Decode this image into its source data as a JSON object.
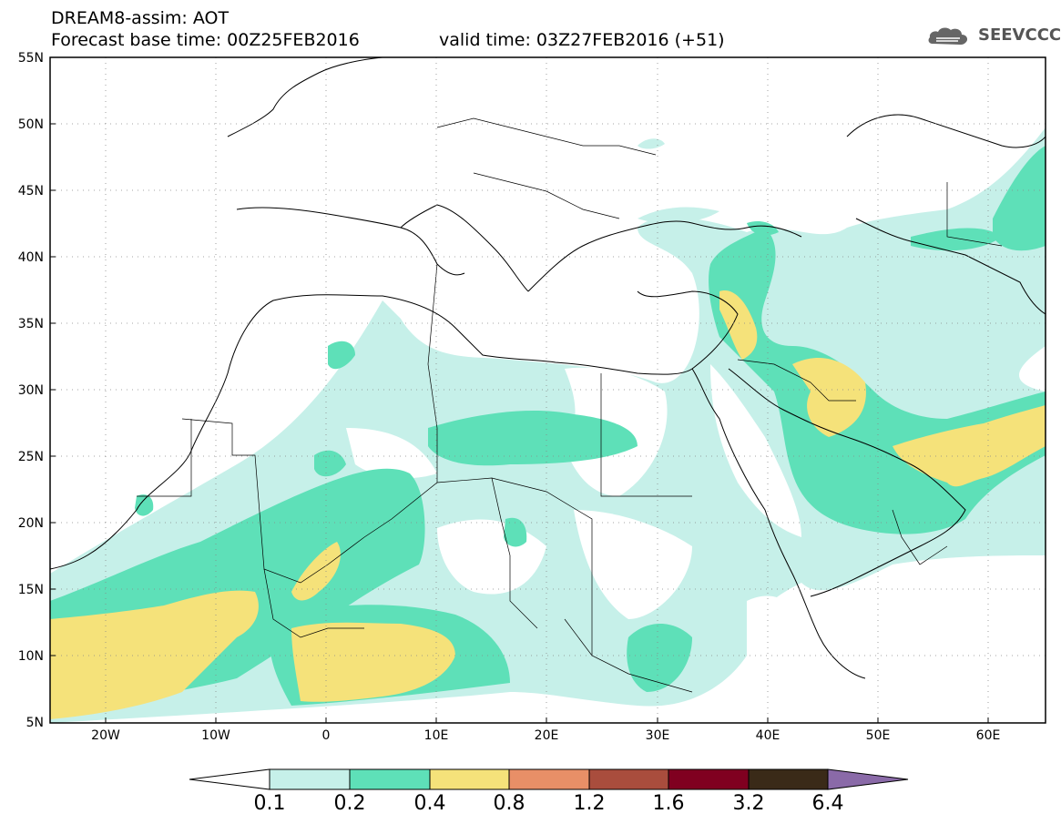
{
  "header": {
    "title_line1": "DREAM8-assim: AOT",
    "title_line2": "Forecast base time: 00Z25FEB2016",
    "valid_time": "valid time: 03Z27FEB2016 (+51)",
    "logo_text": "SEEVCCC"
  },
  "map": {
    "lat_labels": [
      "55N",
      "50N",
      "45N",
      "40N",
      "35N",
      "30N",
      "25N",
      "20N",
      "15N",
      "10N",
      "5N"
    ],
    "lon_labels": [
      "20W",
      "10W",
      "0",
      "10E",
      "20E",
      "30E",
      "40E",
      "50E",
      "60E"
    ],
    "lat_range": [
      5,
      55
    ],
    "lon_range": [
      -25,
      65
    ],
    "grid": "dotted"
  },
  "colorbar": {
    "labels": [
      "0.1",
      "0.2",
      "0.4",
      "0.8",
      "1.2",
      "1.6",
      "3.2",
      "6.4"
    ],
    "colors": [
      "#ffffff",
      "#c6f0e9",
      "#5ee0b8",
      "#f5e27a",
      "#e88f67",
      "#a94d3d",
      "#800020",
      "#3a2a18",
      "#8a6aa8"
    ]
  }
}
